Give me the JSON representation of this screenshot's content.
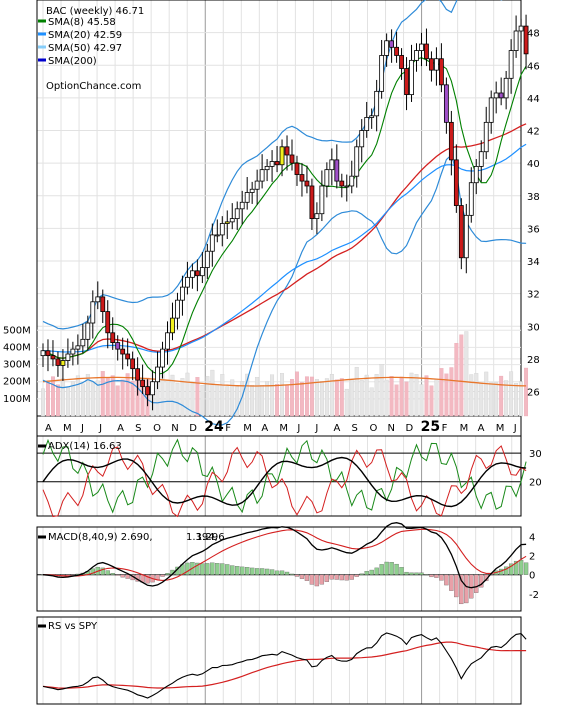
{
  "chart_data": {
    "type": "candlestick",
    "symbol": "BAC",
    "title": "BAC (weekly) 46.71",
    "watermark": "OptionChance.com",
    "price_axis": {
      "ylim": [
        24.5,
        50
      ],
      "ticks": [
        26,
        28,
        30,
        32,
        34,
        36,
        38,
        40,
        42,
        44,
        46,
        48
      ]
    },
    "volume_axis": {
      "ticks": [
        "100M",
        "200M",
        "300M",
        "400M",
        "500M"
      ],
      "tick_values": [
        100,
        200,
        300,
        400,
        500
      ],
      "ylim": [
        0,
        560
      ]
    },
    "x_axis": {
      "tick_labels": [
        "A",
        "M",
        "J",
        "J",
        "A",
        "S",
        "O",
        "N",
        "D",
        "24",
        "F",
        "M",
        "A",
        "M",
        "J",
        "J",
        "A",
        "S",
        "O",
        "N",
        "D",
        "25",
        "F",
        "M",
        "A",
        "M",
        "J"
      ],
      "year_labels": [
        "24",
        "25"
      ]
    },
    "legend": [
      {
        "label": "SMA(8) 45.58",
        "color": "#008000"
      },
      {
        "label": "SMA(20) 42.59",
        "color": "#1e90ff"
      },
      {
        "label": "SMA(50) 42.97",
        "color": "#87cefa"
      },
      {
        "label": "SMA(200)",
        "color": "#0000cd"
      }
    ],
    "close_series_approx": [
      28.5,
      28.2,
      28.0,
      27.6,
      27.9,
      28.3,
      28.6,
      28.8,
      29.2,
      30.2,
      31.5,
      31.8,
      30.9,
      29.6,
      29.0,
      28.6,
      28.3,
      28.0,
      27.4,
      26.7,
      26.3,
      25.8,
      26.6,
      27.5,
      28.6,
      29.6,
      30.5,
      31.6,
      32.4,
      33.0,
      33.4,
      33.1,
      33.6,
      34.6,
      35.6,
      35.6,
      36.3,
      36.4,
      36.6,
      37.2,
      37.6,
      38.2,
      38.4,
      38.9,
      39.6,
      39.8,
      40.1,
      39.9,
      41.0,
      40.5,
      40.0,
      39.3,
      38.9,
      38.6,
      36.6,
      36.9,
      38.6,
      39.6,
      40.2,
      38.9,
      38.6,
      38.6,
      39.2,
      41.0,
      42.0,
      42.8,
      42.9,
      44.4,
      46.6,
      47.5,
      47.1,
      46.6,
      45.8,
      44.2,
      46.3,
      46.9,
      47.3,
      46.4,
      45.7,
      46.4,
      44.8,
      42.5,
      40.2,
      37.4,
      34.2,
      36.8,
      38.8,
      39.8,
      40.7,
      42.5,
      44.0,
      44.3,
      44.0,
      45.2,
      46.9,
      48.1,
      48.4,
      46.7
    ],
    "indicators": [
      {
        "label": "ADX(14) 16.63",
        "ticks": [
          20,
          30
        ]
      },
      {
        "label": "MACD(8,40,9) 2.690,",
        "values": [
          "1.394,",
          "1.296"
        ],
        "value_colors": [
          "#e00000",
          "#1e5bd8"
        ],
        "ticks": [
          -2,
          0,
          2,
          4
        ]
      },
      {
        "label": "RS vs SPY"
      }
    ]
  }
}
